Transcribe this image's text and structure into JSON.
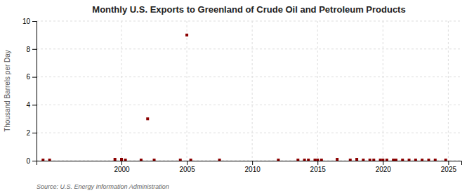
{
  "chart_data": {
    "type": "scatter",
    "title": "Monthly U.S. Exports to Greenland of Crude Oil and Petroleum Products",
    "y_label": "Thousand Barrels per Day",
    "annotations": [
      "Source: U.S. Energy Information Administration"
    ],
    "x": [
      1994.0,
      1994.5,
      1999.5,
      2000.0,
      2000.3,
      2001.5,
      2002.0,
      2002.5,
      2004.5,
      2005.0,
      2005.3,
      2007.5,
      2012.0,
      2013.5,
      2014.0,
      2014.3,
      2014.8,
      2015.0,
      2015.3,
      2016.5,
      2017.5,
      2018.0,
      2018.5,
      2019.0,
      2019.3,
      2019.8,
      2020.0,
      2020.3,
      2020.8,
      2021.0,
      2021.5,
      2022.0,
      2022.5,
      2023.0,
      2023.5,
      2024.0,
      2024.8
    ],
    "values": [
      0.05,
      0.05,
      0.1,
      0.1,
      0.05,
      0.05,
      3.0,
      0.05,
      0.05,
      9.0,
      0.05,
      0.05,
      0.05,
      0.05,
      0.05,
      0.05,
      0.05,
      0.05,
      0.05,
      0.1,
      0.05,
      0.1,
      0.05,
      0.05,
      0.05,
      0.05,
      0.05,
      0.05,
      0.05,
      0.05,
      0.05,
      0.05,
      0.05,
      0.05,
      0.05,
      0.05,
      0.05
    ],
    "color": "#8B0000",
    "marker": "square",
    "xlim": [
      1993.5,
      2026
    ],
    "ylim": [
      0,
      10
    ],
    "xticks": [
      2000,
      2005,
      2010,
      2015,
      2020,
      2025
    ],
    "yticks": [
      0,
      2,
      4,
      6,
      8,
      10
    ],
    "grid": true
  }
}
